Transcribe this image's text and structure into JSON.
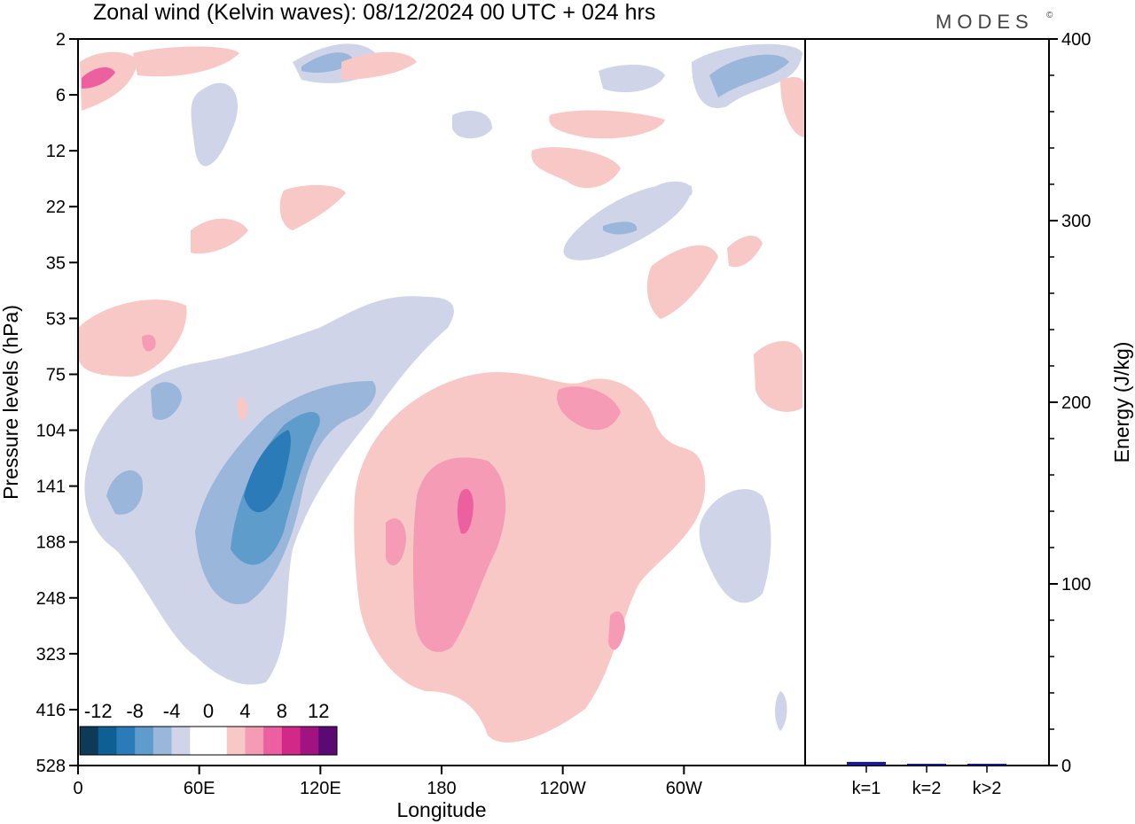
{
  "chart_data": [
    {
      "type": "heatmap",
      "title": "Zonal wind (Kelvin waves):  08/12/2024  00 UTC  + 024 hrs",
      "xlabel": "Longitude",
      "ylabel": "Pressure levels (hPa)",
      "x_ticks": [
        "0",
        "60E",
        "120E",
        "180",
        "120W",
        "60W"
      ],
      "y_ticks": [
        "2",
        "6",
        "12",
        "22",
        "35",
        "53",
        "75",
        "104",
        "141",
        "188",
        "248",
        "323",
        "416",
        "528"
      ],
      "y_scale": "log",
      "colorbar": {
        "labels": [
          "-12",
          "-8",
          "-4",
          "0",
          "4",
          "8",
          "12"
        ],
        "colors": [
          "#0d3a57",
          "#0e5f93",
          "#2a7bb8",
          "#5e9ccb",
          "#9ab6da",
          "#d0d4e8",
          "#ffffff",
          "#ffffff",
          "#f8c8c6",
          "#f59bb5",
          "#ec60a0",
          "#d22888",
          "#a21382",
          "#5a0a72"
        ]
      },
      "negative_color": "#d0d4e8",
      "positive_color": "#f8c8c6"
    },
    {
      "type": "bar",
      "categories": [
        "k=1",
        "k=2",
        "k>2"
      ],
      "values": [
        2,
        0.5,
        0.8
      ],
      "ylabel": "Energy (J/kg)",
      "ylim": [
        0,
        400
      ],
      "y_ticks": [
        "0",
        "100",
        "200",
        "300",
        "400"
      ],
      "bar_color": "#1a1a8a"
    }
  ],
  "logo": "MODES",
  "logo_mark": "©"
}
